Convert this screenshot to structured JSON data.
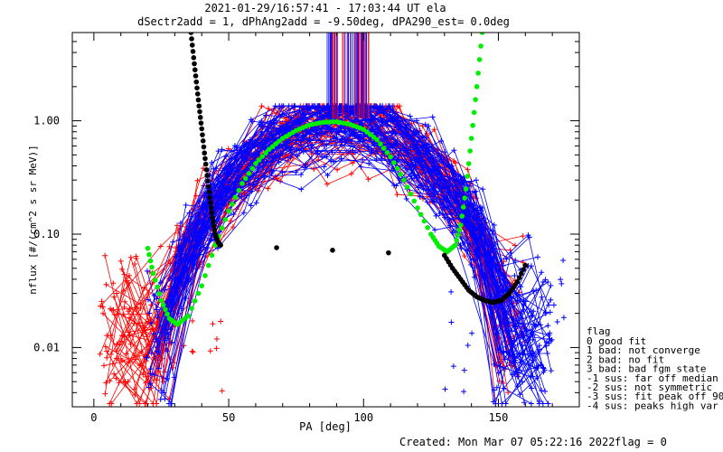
{
  "chart_data": {
    "type": "scatter",
    "title_line1": "2021-01-29/16:57:41 - 17:03:44 UT ela",
    "title_line2": "dSectr2add = 1, dPhAng2add = -9.50deg, dPA290_est=    0.0deg",
    "xlabel": "PA [deg]",
    "ylabel": "nflux [#/(cm^2 s sr MeV)]",
    "xlim": [
      -8,
      180
    ],
    "ylim": [
      0.003,
      6.0
    ],
    "yscale": "log",
    "x_ticks": [
      0,
      50,
      100,
      150
    ],
    "x_tick_labels": [
      "0",
      "50",
      "100",
      "150"
    ],
    "y_ticks": [
      0.01,
      0.1,
      1.0
    ],
    "y_tick_labels": [
      "0.01",
      "0.10",
      "1.00"
    ],
    "grid": false,
    "colors": {
      "red": "#ff0000",
      "blue": "#0000ff",
      "green": "#00ee00",
      "black": "#000000"
    },
    "series": [
      {
        "color": "#ff0000",
        "marker": "plus",
        "style": "lines+markers",
        "sweeps": 50,
        "description_points": [
          [
            3,
            0.02
          ],
          [
            20,
            0.025
          ],
          [
            50,
            0.2
          ],
          [
            75,
            0.6
          ],
          [
            90,
            1.0
          ],
          [
            105,
            0.6
          ],
          [
            130,
            0.15
          ],
          [
            155,
            0.015
          ]
        ]
      },
      {
        "color": "#0000ff",
        "marker": "plus",
        "style": "lines+markers",
        "sweeps": 70,
        "description_points": [
          [
            20,
            0.015
          ],
          [
            50,
            0.25
          ],
          [
            75,
            0.7
          ],
          [
            90,
            1.0
          ],
          [
            105,
            0.7
          ],
          [
            130,
            0.18
          ],
          [
            165,
            0.012
          ]
        ]
      },
      {
        "color": "#00ee00",
        "marker": "dot",
        "style": "markers",
        "x": [
          20,
          22,
          25,
          28,
          31,
          35,
          40,
          45,
          50,
          55,
          60,
          65,
          70,
          75,
          80,
          85,
          90,
          95,
          100,
          105,
          110,
          115,
          120,
          125,
          128,
          131,
          134,
          136,
          138,
          140,
          142,
          144
        ],
        "y": [
          0.075,
          0.045,
          0.026,
          0.018,
          0.016,
          0.019,
          0.035,
          0.08,
          0.16,
          0.28,
          0.42,
          0.56,
          0.7,
          0.82,
          0.92,
          0.97,
          0.98,
          0.93,
          0.84,
          0.68,
          0.48,
          0.3,
          0.17,
          0.1,
          0.078,
          0.07,
          0.08,
          0.12,
          0.25,
          0.7,
          2.0,
          6.0
        ]
      },
      {
        "color": "#000000",
        "marker": "dot",
        "style": "markers",
        "x": [
          36,
          37,
          38,
          39,
          40,
          41,
          42,
          43,
          44,
          45,
          46,
          47,
          130,
          133,
          136,
          139,
          142,
          145,
          148,
          151,
          154,
          157,
          160
        ],
        "y": [
          6.0,
          3.6,
          2.2,
          1.35,
          0.85,
          0.52,
          0.33,
          0.21,
          0.14,
          0.1,
          0.085,
          0.08,
          0.065,
          0.05,
          0.04,
          0.032,
          0.028,
          0.026,
          0.025,
          0.026,
          0.03,
          0.038,
          0.053
        ]
      }
    ],
    "legend": {
      "placement": "right",
      "title": "flag",
      "entries": [
        " 0 good fit",
        " 1 bad: not converge",
        " 2 bad: no fit",
        " 3 bad: bad fgm state",
        "-1 sus: far off median",
        "-2 sus: not symmetric",
        "-3 sus: fit peak off 90",
        "-4 sus: peaks high var"
      ]
    }
  },
  "footer": {
    "created": "Created: Mon Mar 07 05:22:16 2022",
    "flag": "flag = 0"
  }
}
